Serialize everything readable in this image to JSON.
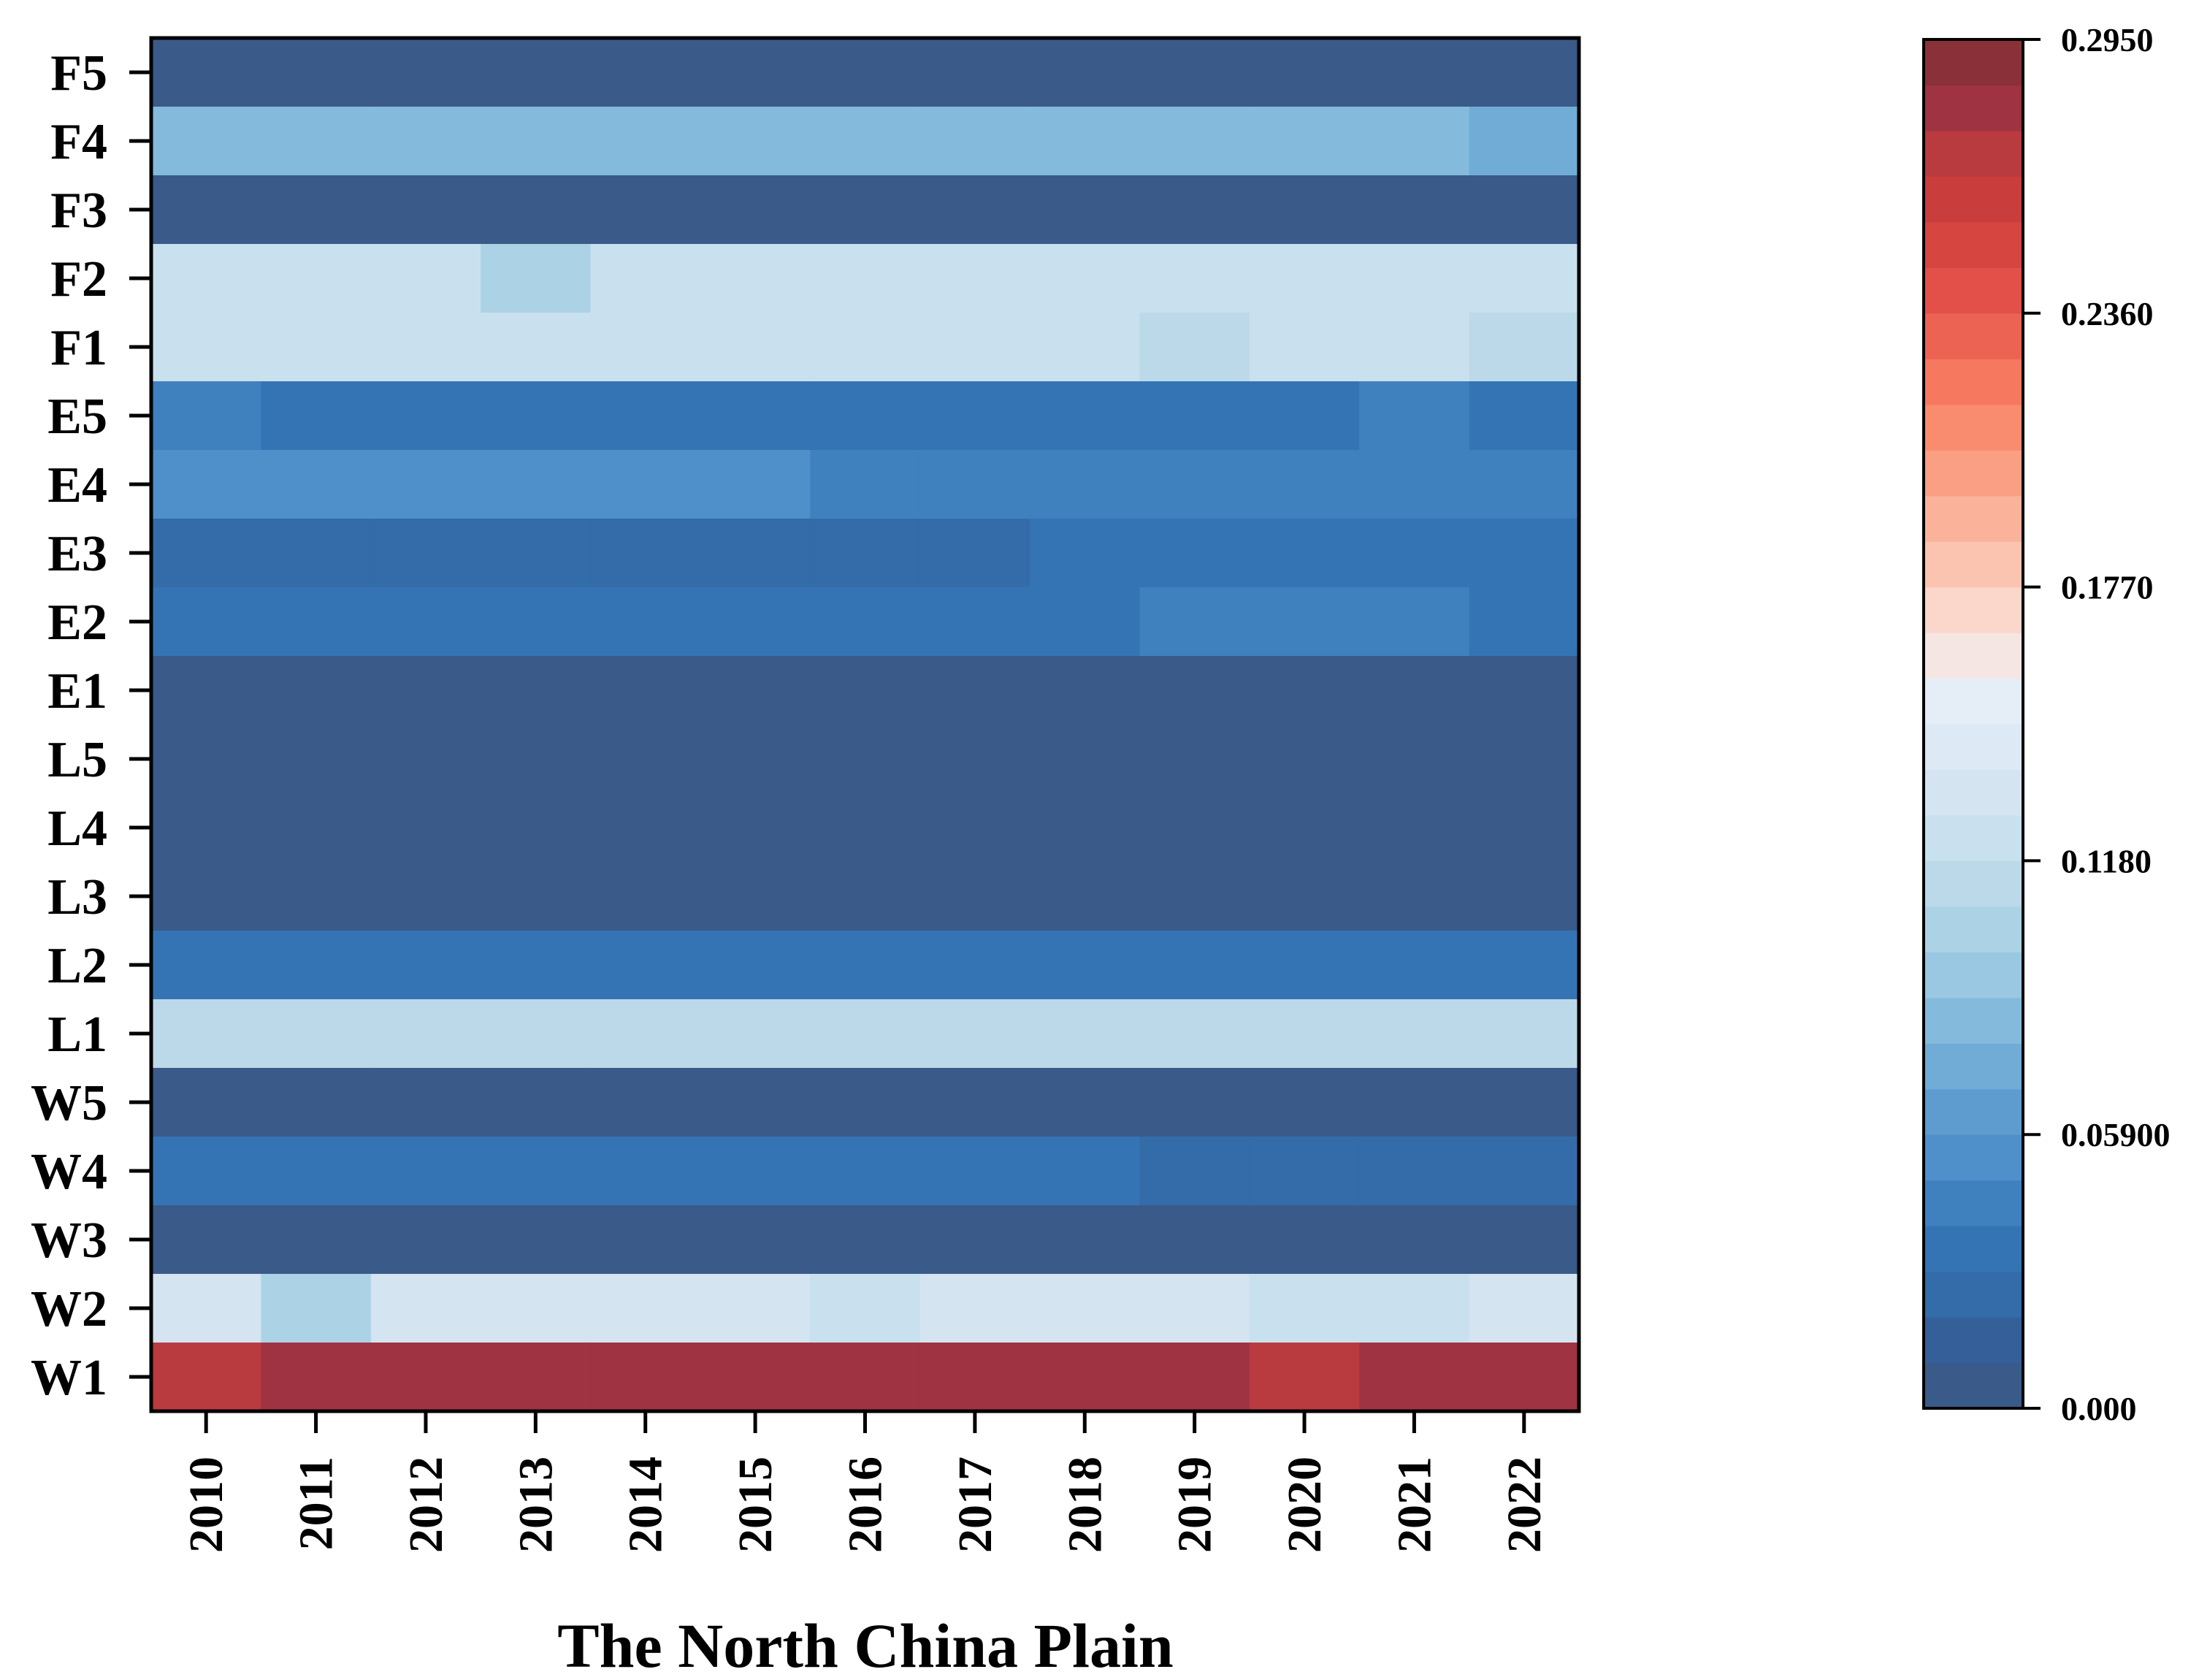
{
  "chart_data": {
    "type": "heatmap",
    "title": "",
    "xlabel": "The North China Plain",
    "ylabel": "",
    "x_categories": [
      "2010",
      "2011",
      "2012",
      "2013",
      "2014",
      "2015",
      "2016",
      "2017",
      "2018",
      "2019",
      "2020",
      "2021",
      "2022"
    ],
    "y_categories": [
      "F5",
      "F4",
      "F3",
      "F2",
      "F1",
      "E5",
      "E4",
      "E3",
      "E2",
      "E1",
      "L5",
      "L4",
      "L3",
      "L2",
      "L1",
      "W5",
      "W4",
      "W3",
      "W2",
      "W1"
    ],
    "values": [
      [
        0.003,
        0.003,
        0.003,
        0.003,
        0.003,
        0.003,
        0.003,
        0.003,
        0.003,
        0.003,
        0.003,
        0.003,
        0.003
      ],
      [
        0.085,
        0.085,
        0.085,
        0.085,
        0.085,
        0.085,
        0.085,
        0.085,
        0.085,
        0.085,
        0.085,
        0.085,
        0.075
      ],
      [
        0.003,
        0.003,
        0.003,
        0.003,
        0.003,
        0.003,
        0.003,
        0.003,
        0.003,
        0.003,
        0.003,
        0.003,
        0.003
      ],
      [
        0.125,
        0.125,
        0.125,
        0.105,
        0.125,
        0.125,
        0.125,
        0.125,
        0.125,
        0.125,
        0.125,
        0.125,
        0.125
      ],
      [
        0.125,
        0.125,
        0.125,
        0.125,
        0.125,
        0.125,
        0.125,
        0.125,
        0.125,
        0.115,
        0.125,
        0.125,
        0.115
      ],
      [
        0.045,
        0.03,
        0.03,
        0.03,
        0.03,
        0.03,
        0.03,
        0.03,
        0.03,
        0.03,
        0.03,
        0.045,
        0.03
      ],
      [
        0.055,
        0.055,
        0.055,
        0.055,
        0.055,
        0.055,
        0.045,
        0.045,
        0.045,
        0.045,
        0.045,
        0.045,
        0.045
      ],
      [
        0.02,
        0.02,
        0.02,
        0.02,
        0.02,
        0.02,
        0.02,
        0.02,
        0.03,
        0.03,
        0.03,
        0.03,
        0.03
      ],
      [
        0.035,
        0.035,
        0.035,
        0.035,
        0.035,
        0.035,
        0.035,
        0.035,
        0.035,
        0.045,
        0.045,
        0.045,
        0.035
      ],
      [
        0.003,
        0.003,
        0.003,
        0.003,
        0.003,
        0.003,
        0.003,
        0.003,
        0.003,
        0.003,
        0.003,
        0.003,
        0.003
      ],
      [
        0.003,
        0.003,
        0.003,
        0.003,
        0.003,
        0.003,
        0.003,
        0.003,
        0.003,
        0.003,
        0.003,
        0.003,
        0.003
      ],
      [
        0.003,
        0.003,
        0.003,
        0.003,
        0.003,
        0.003,
        0.003,
        0.003,
        0.003,
        0.003,
        0.003,
        0.003,
        0.003
      ],
      [
        0.003,
        0.003,
        0.003,
        0.003,
        0.003,
        0.003,
        0.003,
        0.003,
        0.003,
        0.003,
        0.003,
        0.003,
        0.003
      ],
      [
        0.03,
        0.03,
        0.03,
        0.03,
        0.03,
        0.03,
        0.03,
        0.03,
        0.03,
        0.03,
        0.03,
        0.03,
        0.03
      ],
      [
        0.11,
        0.11,
        0.11,
        0.11,
        0.11,
        0.11,
        0.11,
        0.11,
        0.11,
        0.11,
        0.11,
        0.11,
        0.11
      ],
      [
        0.003,
        0.003,
        0.003,
        0.003,
        0.003,
        0.003,
        0.003,
        0.003,
        0.003,
        0.003,
        0.003,
        0.003,
        0.003
      ],
      [
        0.03,
        0.03,
        0.03,
        0.03,
        0.03,
        0.03,
        0.03,
        0.03,
        0.03,
        0.02,
        0.02,
        0.02,
        0.02
      ],
      [
        0.003,
        0.003,
        0.003,
        0.003,
        0.003,
        0.003,
        0.003,
        0.003,
        0.003,
        0.003,
        0.003,
        0.003,
        0.003
      ],
      [
        0.13,
        0.105,
        0.13,
        0.135,
        0.13,
        0.13,
        0.12,
        0.13,
        0.13,
        0.135,
        0.12,
        0.12,
        0.135
      ],
      [
        0.27,
        0.285,
        0.285,
        0.285,
        0.285,
        0.285,
        0.285,
        0.285,
        0.285,
        0.285,
        0.27,
        0.285,
        0.285
      ]
    ],
    "colorbar": {
      "range": [
        0.0,
        0.295
      ],
      "tick_values": [
        0.0,
        0.059,
        0.118,
        0.177,
        0.236,
        0.295
      ],
      "tick_labels": [
        "0.000",
        "0.05900",
        "0.1180",
        "0.1770",
        "0.2360",
        "0.2950"
      ],
      "levels": 30,
      "colors": [
        "#3a5a8a",
        "#355f99",
        "#336ca8",
        "#3574b4",
        "#3f80bf",
        "#4f8fca",
        "#5e9ccf",
        "#70acd6",
        "#84bbdd",
        "#9ac7e1",
        "#acd2e5",
        "#bcd9e9",
        "#c9e0ee",
        "#d4e4f1",
        "#dde9f4",
        "#e5eef7",
        "#f5e6e4",
        "#fbd6cb",
        "#fbc4b0",
        "#fab39a",
        "#fa9f84",
        "#f98b6f",
        "#f5785f",
        "#ed6353",
        "#e25049",
        "#d74541",
        "#ca3d3d",
        "#b93a3f",
        "#9f3341",
        "#893039"
      ]
    },
    "grid": false,
    "legend": "colorbar-right"
  }
}
